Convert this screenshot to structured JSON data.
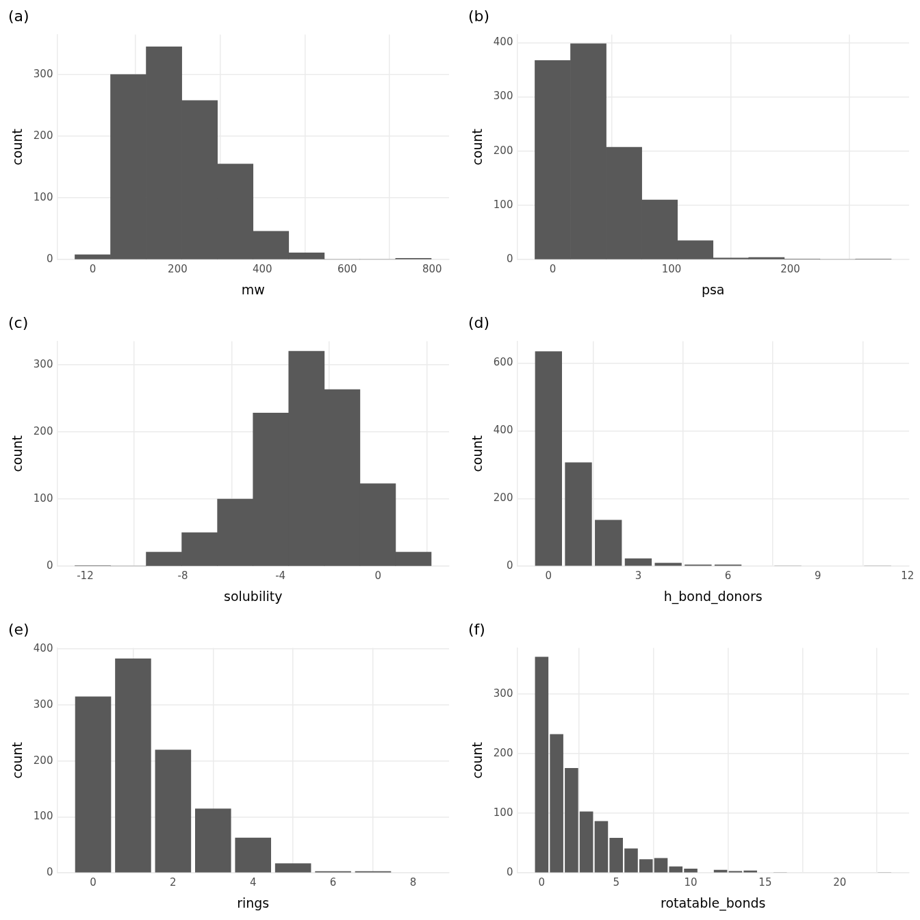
{
  "chart_data": [
    {
      "type": "histogram",
      "title": "(a)",
      "x_label": "mw",
      "y_label": "count",
      "bins": [
        -42,
        42,
        126,
        210,
        294,
        378,
        462,
        546,
        630,
        714,
        798
      ],
      "values": [
        8,
        300,
        345,
        258,
        155,
        46,
        11,
        0,
        0,
        2
      ],
      "xlim": [
        -84,
        840
      ],
      "xticks": [
        0,
        200,
        400,
        600,
        800
      ],
      "ylim": [
        0,
        365
      ],
      "yticks": [
        0,
        100,
        200,
        300
      ],
      "color": "#595959",
      "grid": true
    },
    {
      "type": "histogram",
      "title": "(b)",
      "x_label": "psa",
      "y_label": "count",
      "bins": [
        -15,
        15,
        45,
        75,
        105,
        135,
        165,
        195,
        225,
        255,
        285
      ],
      "values": [
        367,
        398,
        207,
        110,
        35,
        3,
        4,
        1,
        0,
        1
      ],
      "xlim": [
        -30,
        300
      ],
      "xticks": [
        0,
        100,
        200
      ],
      "ylim": [
        0,
        415
      ],
      "yticks": [
        0,
        100,
        200,
        300,
        400
      ],
      "color": "#595959",
      "grid": true
    },
    {
      "type": "histogram",
      "title": "(c)",
      "x_label": "solubility",
      "y_label": "count",
      "bins": [
        -12.42,
        -10.96,
        -9.5,
        -8.04,
        -6.58,
        -5.12,
        -3.66,
        -2.2,
        -0.74,
        0.72,
        2.18
      ],
      "values": [
        1,
        0,
        21,
        50,
        100,
        228,
        320,
        263,
        123,
        21
      ],
      "xlim": [
        -13.15,
        2.91
      ],
      "xticks": [
        -12,
        -8,
        -4,
        0
      ],
      "ylim": [
        0,
        335
      ],
      "yticks": [
        0,
        100,
        200,
        300
      ],
      "color": "#595959",
      "grid": true
    },
    {
      "type": "bar",
      "title": "(d)",
      "x_label": "h_bond_donors",
      "y_label": "count",
      "x": [
        0,
        1,
        2,
        3,
        4,
        5,
        6,
        7,
        8,
        9,
        10,
        11
      ],
      "values": [
        635,
        307,
        137,
        23,
        10,
        5,
        5,
        0,
        1,
        0,
        0,
        1
      ],
      "xlim": [
        -1.05,
        12.05
      ],
      "xticks": [
        0,
        3,
        6,
        9,
        12
      ],
      "ylim": [
        0,
        665
      ],
      "yticks": [
        0,
        200,
        400,
        600
      ],
      "color": "#595959",
      "grid": true
    },
    {
      "type": "bar",
      "title": "(e)",
      "x_label": "rings",
      "y_label": "count",
      "x": [
        0,
        1,
        2,
        3,
        4,
        5,
        6,
        7,
        8
      ],
      "values": [
        315,
        383,
        220,
        115,
        63,
        17,
        3,
        3,
        1
      ],
      "xlim": [
        -0.9,
        8.9
      ],
      "xticks": [
        0,
        2,
        4,
        6,
        8
      ],
      "ylim": [
        0,
        402
      ],
      "yticks": [
        0,
        100,
        200,
        300,
        400
      ],
      "color": "#595959",
      "grid": true
    },
    {
      "type": "bar",
      "title": "(f)",
      "x_label": "rotatable_bonds",
      "y_label": "count",
      "x": [
        0,
        1,
        2,
        3,
        4,
        5,
        6,
        7,
        8,
        9,
        10,
        11,
        12,
        13,
        14,
        15,
        16,
        17,
        18,
        19,
        20,
        21,
        22,
        23
      ],
      "values": [
        363,
        233,
        176,
        103,
        87,
        59,
        41,
        23,
        25,
        11,
        7,
        0,
        5,
        3,
        4,
        0,
        1,
        0,
        0,
        0,
        0,
        0,
        0,
        1
      ],
      "xlim": [
        -1.65,
        24.65
      ],
      "xticks": [
        0,
        5,
        10,
        15,
        20
      ],
      "ylim": [
        0,
        378
      ],
      "yticks": [
        0,
        100,
        200,
        300
      ],
      "color": "#595959",
      "grid": true
    }
  ]
}
